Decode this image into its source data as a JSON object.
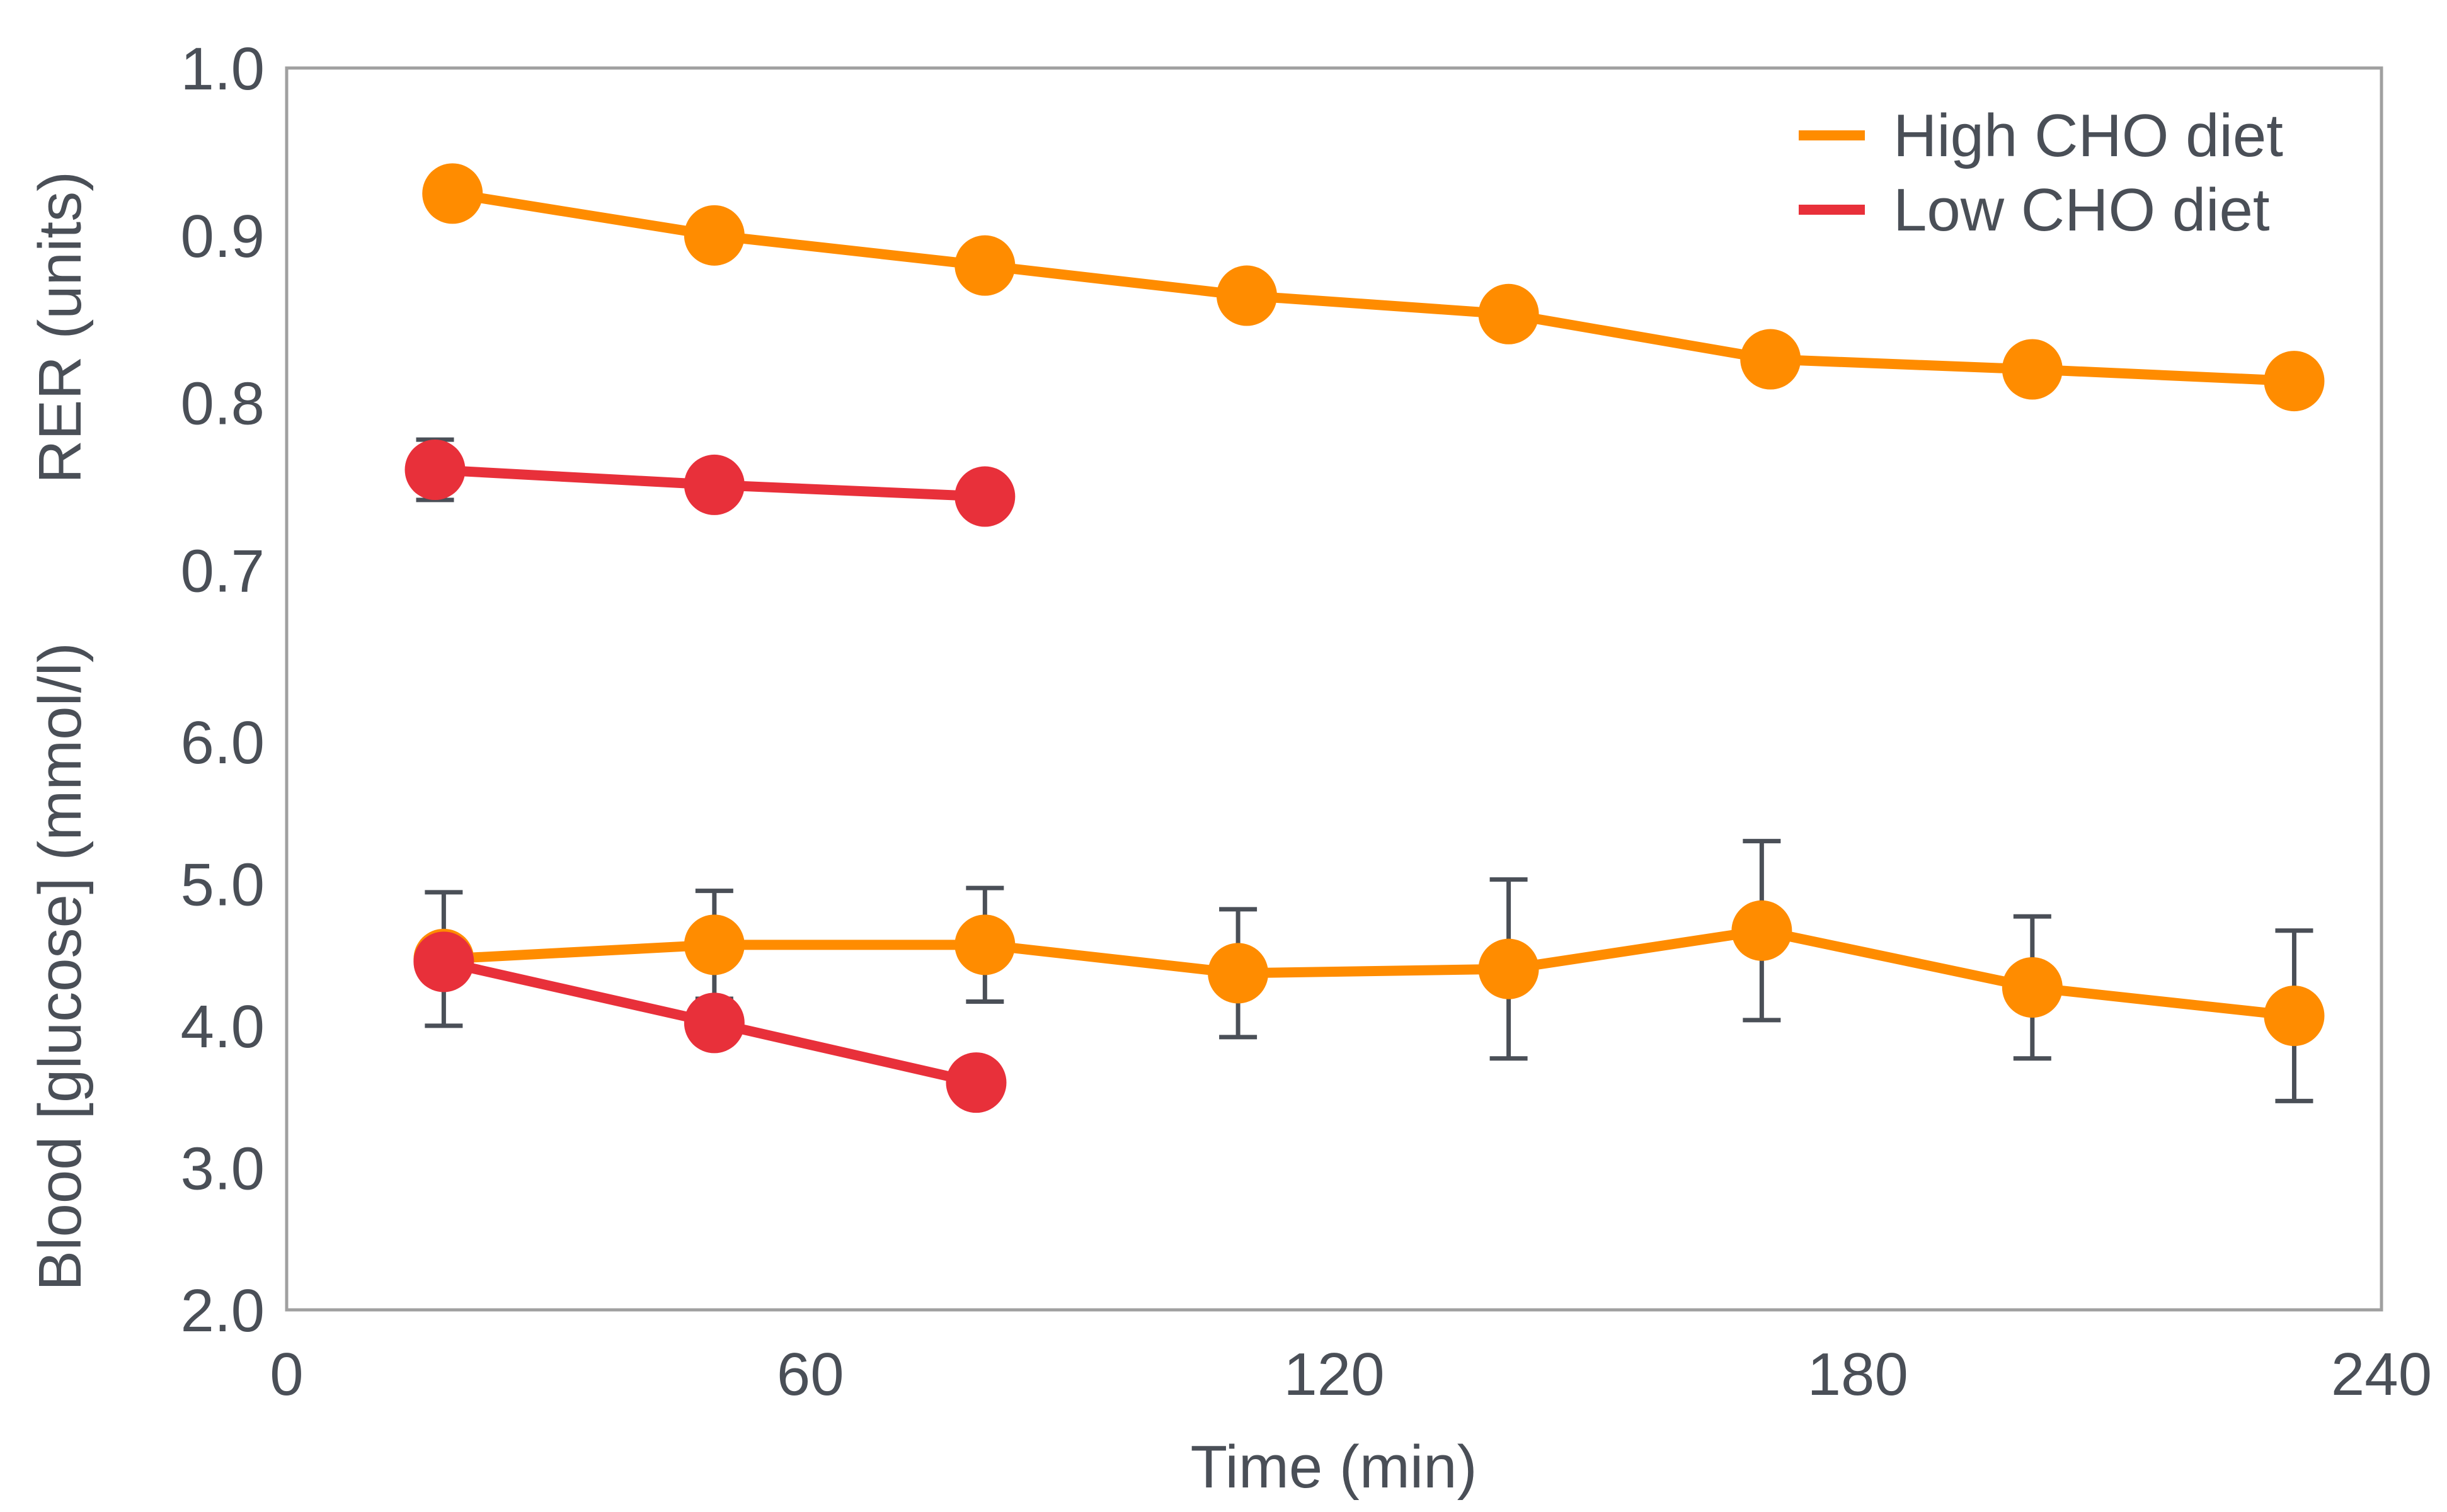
{
  "chart_data": {
    "type": "line",
    "xlabel": "Time (min)",
    "xlim": [
      0,
      240
    ],
    "xticks": [
      0,
      60,
      120,
      180,
      240
    ],
    "panels": [
      {
        "ylabel": "RER (units)",
        "ylim": [
          0.64,
          1.0
        ],
        "yticks": [
          0.7,
          0.8,
          0.9,
          1.0
        ],
        "yticklabels": [
          "0.7",
          "0.8",
          "0.9",
          "1.0"
        ],
        "series": [
          {
            "name": "High CHO diet",
            "color": "#ff8c00",
            "x": [
              19,
              49,
              80,
              110,
              140,
              170,
              200,
              230
            ],
            "y": [
              0.925,
              0.9,
              0.882,
              0.864,
              0.853,
              0.826,
              0.82,
              0.813
            ],
            "err": [
              0.0,
              0.0,
              0.0,
              0.0,
              0.012,
              0.0,
              0.0,
              0.01
            ]
          },
          {
            "name": "Low CHO diet",
            "color": "#e8303a",
            "x": [
              17,
              49,
              80
            ],
            "y": [
              0.76,
              0.751,
              0.744
            ],
            "err": [
              0.018,
              0.01,
              0.01
            ]
          }
        ]
      },
      {
        "ylabel": "Blood [glucose] (mmol/l)",
        "ylim": [
          2.0,
          6.5
        ],
        "yticks": [
          2.0,
          3.0,
          4.0,
          5.0,
          6.0
        ],
        "yticklabels": [
          "2.0",
          "3.0",
          "4.0",
          "5.0",
          "6.0"
        ],
        "series": [
          {
            "name": "High CHO diet",
            "color": "#ff8c00",
            "x": [
              18,
              49,
              80,
              109,
              140,
              169,
              200,
              230
            ],
            "y": [
              4.47,
              4.57,
              4.57,
              4.37,
              4.4,
              4.67,
              4.27,
              4.07
            ],
            "err": [
              0.47,
              0.38,
              0.4,
              0.45,
              0.63,
              0.63,
              0.5,
              0.6
            ]
          },
          {
            "name": "Low CHO diet",
            "color": "#e8303a",
            "x": [
              18,
              49,
              79
            ],
            "y": [
              4.45,
              4.02,
              3.6
            ],
            "err": [
              0.0,
              0.05,
              0.05
            ]
          }
        ]
      }
    ],
    "legend": {
      "position": "top-right",
      "entries": [
        {
          "label": "High CHO diet",
          "color": "#ff8c00"
        },
        {
          "label": "Low CHO diet",
          "color": "#e8303a"
        }
      ]
    }
  }
}
